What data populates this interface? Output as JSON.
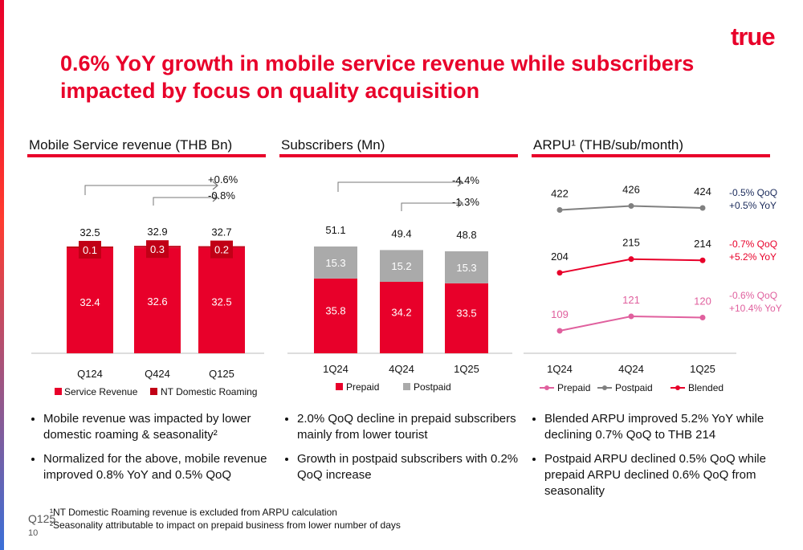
{
  "brand": {
    "logo": "true",
    "accent": "#e8002a"
  },
  "title": "0.6% YoY growth in mobile service revenue while subscribers impacted by focus on quality acquisition",
  "sections": [
    {
      "title": "Mobile Service revenue (THB Bn)"
    },
    {
      "title": "Subscribers (Mn)"
    },
    {
      "title": "ARPU¹ (THB/sub/month)"
    }
  ],
  "chart_data": [
    {
      "type": "bar",
      "stacked": true,
      "title": "Mobile Service revenue (THB Bn)",
      "categories": [
        "Q124",
        "Q424",
        "Q125"
      ],
      "series": [
        {
          "name": "Service Revenue",
          "color": "#e8002a",
          "values": [
            32.4,
            32.6,
            32.5
          ]
        },
        {
          "name": "NT Domestic Roaming",
          "color": "#c10016",
          "values": [
            0.1,
            0.3,
            0.2
          ]
        }
      ],
      "totals": [
        "32.5",
        "32.9",
        "32.7"
      ],
      "annotations": [
        "+0.6%",
        "-0.8%"
      ]
    },
    {
      "type": "bar",
      "stacked": true,
      "title": "Subscribers (Mn)",
      "categories": [
        "1Q24",
        "4Q24",
        "1Q25"
      ],
      "series": [
        {
          "name": "Prepaid",
          "color": "#e8002a",
          "values": [
            35.8,
            34.2,
            33.5
          ]
        },
        {
          "name": "Postpaid",
          "color": "#aaaaaa",
          "values": [
            15.3,
            15.2,
            15.3
          ]
        }
      ],
      "totals": [
        "51.1",
        "49.4",
        "48.8"
      ],
      "annotations": [
        "-4.4%",
        "-1.3%"
      ]
    },
    {
      "type": "line",
      "title": "ARPU¹ (THB/sub/month)",
      "categories": [
        "1Q24",
        "4Q24",
        "1Q25"
      ],
      "series": [
        {
          "name": "Prepaid",
          "color": "#e0609e",
          "values": [
            109,
            121,
            120
          ],
          "notes": [
            "-0.6% QoQ",
            "+10.4% YoY"
          ]
        },
        {
          "name": "Postpaid",
          "color": "#808080",
          "values": [
            422,
            426,
            424
          ],
          "notes": [
            "-0.5% QoQ",
            "+0.5% YoY"
          ]
        },
        {
          "name": "Blended",
          "color": "#e8002a",
          "values": [
            204,
            215,
            214
          ],
          "notes": [
            "-0.7% QoQ",
            "+5.2% YoY"
          ]
        }
      ]
    }
  ],
  "bullets": [
    [
      "Mobile revenue was impacted by lower domestic roaming & seasonality²",
      "Normalized for the above, mobile revenue improved 0.8% YoY and 0.5% QoQ"
    ],
    [
      "2.0% QoQ decline in prepaid subscribers mainly from lower tourist",
      "Growth in postpaid subscribers with 0.2% QoQ increase"
    ],
    [
      "Blended ARPU improved 5.2% YoY while declining 0.7% QoQ to THB 214",
      "Postpaid ARPU declined 0.5% QoQ while prepaid ARPU declined 0.6% QoQ from seasonality"
    ]
  ],
  "footnotes": [
    "¹NT Domestic Roaming revenue is excluded from ARPU calculation",
    "²Seasonality attributable to impact on prepaid business from lower number of days"
  ],
  "quarter_tag": "Q125",
  "page_number": "10"
}
